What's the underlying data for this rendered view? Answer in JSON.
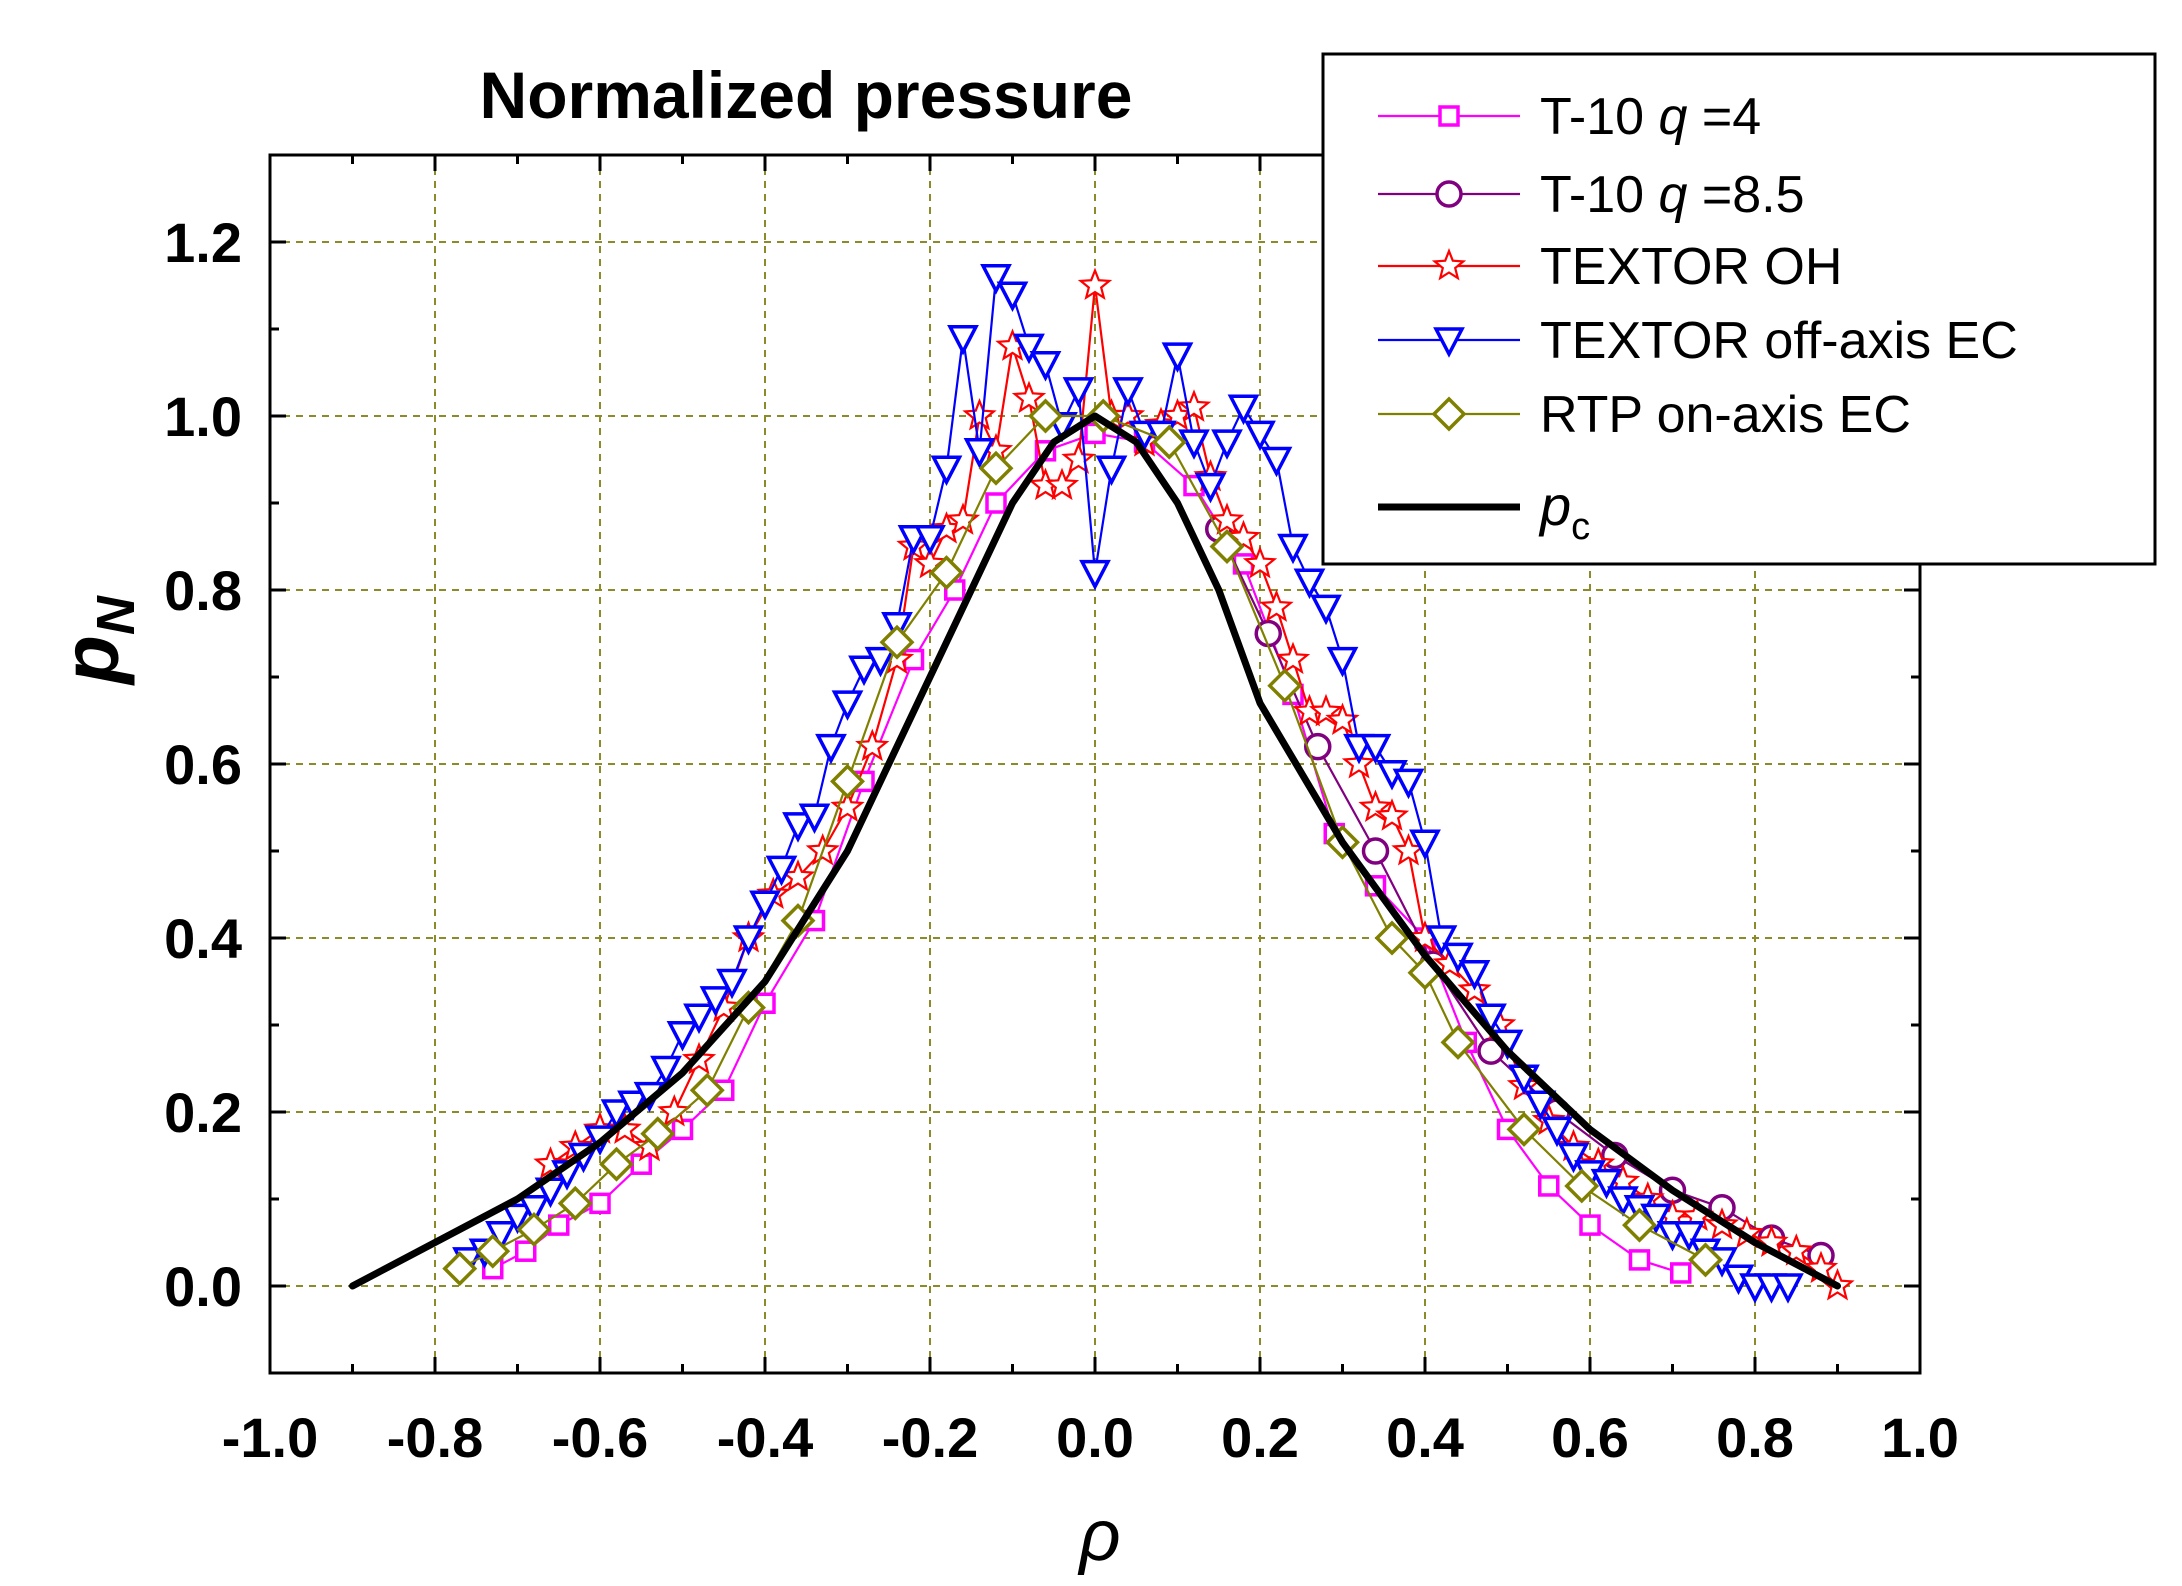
{
  "chart_data": {
    "type": "line",
    "title": "Normalized pressure",
    "xlabel": "ρ",
    "ylabel": "p",
    "ylabel_sub": "N",
    "xlim": [
      -1.0,
      1.0
    ],
    "ylim": [
      -0.1,
      1.3
    ],
    "xticks": [
      -1.0,
      -0.8,
      -0.6,
      -0.4,
      -0.2,
      0.0,
      0.2,
      0.4,
      0.6,
      0.8,
      1.0
    ],
    "yticks": [
      0.0,
      0.2,
      0.4,
      0.6,
      0.8,
      1.0,
      1.2
    ],
    "xtick_labels": [
      "-1.0",
      "-0.8",
      "-0.6",
      "-0.4",
      "-0.2",
      "0.0",
      "0.2",
      "0.4",
      "0.6",
      "0.8",
      "1.0"
    ],
    "ytick_labels": [
      "0.0",
      "0.2",
      "0.4",
      "0.6",
      "0.8",
      "1.0",
      "1.2"
    ],
    "grid": true,
    "legend_position": "top-right",
    "series": [
      {
        "name": "T-10 q =4",
        "label_parts": [
          "T-10 ",
          "q",
          " =4"
        ],
        "color": "#ff00ff",
        "marker": "square",
        "x": [
          -0.73,
          -0.69,
          -0.65,
          -0.6,
          -0.55,
          -0.5,
          -0.45,
          -0.4,
          -0.34,
          -0.28,
          -0.22,
          -0.17,
          -0.12,
          -0.06,
          0.0,
          0.06,
          0.12,
          0.18,
          0.24,
          0.29,
          0.34,
          0.4,
          0.45,
          0.5,
          0.55,
          0.6,
          0.66,
          0.71
        ],
        "y": [
          0.02,
          0.04,
          0.07,
          0.095,
          0.14,
          0.18,
          0.225,
          0.325,
          0.42,
          0.58,
          0.72,
          0.8,
          0.9,
          0.96,
          0.98,
          0.97,
          0.92,
          0.83,
          0.68,
          0.52,
          0.46,
          0.4,
          0.28,
          0.18,
          0.115,
          0.07,
          0.03,
          0.015
        ]
      },
      {
        "name": "T-10 q =8.5",
        "label_parts": [
          "T-10 ",
          "q",
          " =8.5"
        ],
        "color": "#800080",
        "marker": "circle",
        "x": [
          0.15,
          0.21,
          0.27,
          0.34,
          0.41,
          0.48,
          0.56,
          0.63,
          0.7,
          0.76,
          0.82,
          0.88
        ],
        "y": [
          0.87,
          0.75,
          0.62,
          0.5,
          0.37,
          0.27,
          0.2,
          0.15,
          0.11,
          0.09,
          0.055,
          0.035
        ]
      },
      {
        "name": "TEXTOR OH",
        "label_parts": [
          "TEXTOR OH"
        ],
        "color": "#ff0000",
        "marker": "star",
        "x": [
          -0.66,
          -0.63,
          -0.6,
          -0.57,
          -0.54,
          -0.51,
          -0.48,
          -0.45,
          -0.42,
          -0.39,
          -0.36,
          -0.33,
          -0.3,
          -0.27,
          -0.24,
          -0.22,
          -0.2,
          -0.18,
          -0.16,
          -0.14,
          -0.12,
          -0.1,
          -0.08,
          -0.06,
          -0.04,
          -0.02,
          0.0,
          0.02,
          0.04,
          0.06,
          0.08,
          0.1,
          0.12,
          0.14,
          0.16,
          0.18,
          0.2,
          0.22,
          0.24,
          0.26,
          0.28,
          0.3,
          0.32,
          0.34,
          0.36,
          0.38,
          0.4,
          0.43,
          0.46,
          0.49,
          0.52,
          0.55,
          0.58,
          0.61,
          0.64,
          0.67,
          0.7,
          0.73,
          0.76,
          0.79,
          0.82,
          0.85,
          0.88,
          0.9
        ],
        "y": [
          0.14,
          0.16,
          0.18,
          0.18,
          0.16,
          0.2,
          0.26,
          0.32,
          0.4,
          0.45,
          0.47,
          0.5,
          0.55,
          0.62,
          0.72,
          0.85,
          0.83,
          0.87,
          0.88,
          1.0,
          0.96,
          1.08,
          1.02,
          0.92,
          0.92,
          0.95,
          1.15,
          1.0,
          1.0,
          0.97,
          0.99,
          1.0,
          1.01,
          0.93,
          0.88,
          0.86,
          0.83,
          0.78,
          0.72,
          0.66,
          0.66,
          0.65,
          0.6,
          0.55,
          0.54,
          0.5,
          0.4,
          0.37,
          0.34,
          0.3,
          0.23,
          0.19,
          0.16,
          0.14,
          0.12,
          0.1,
          0.08,
          0.08,
          0.07,
          0.06,
          0.05,
          0.04,
          0.02,
          0.0
        ]
      },
      {
        "name": "TEXTOR off-axis EC",
        "label_parts": [
          "TEXTOR off-axis EC"
        ],
        "color": "#0000ff",
        "marker": "triangle-down",
        "x": [
          -0.76,
          -0.74,
          -0.72,
          -0.7,
          -0.68,
          -0.66,
          -0.64,
          -0.62,
          -0.6,
          -0.58,
          -0.56,
          -0.54,
          -0.52,
          -0.5,
          -0.48,
          -0.46,
          -0.44,
          -0.42,
          -0.4,
          -0.38,
          -0.36,
          -0.34,
          -0.32,
          -0.3,
          -0.28,
          -0.26,
          -0.24,
          -0.22,
          -0.2,
          -0.18,
          -0.16,
          -0.14,
          -0.12,
          -0.1,
          -0.08,
          -0.06,
          -0.04,
          -0.02,
          0.0,
          0.02,
          0.04,
          0.06,
          0.08,
          0.1,
          0.12,
          0.14,
          0.16,
          0.18,
          0.2,
          0.22,
          0.24,
          0.26,
          0.28,
          0.3,
          0.32,
          0.34,
          0.36,
          0.38,
          0.4,
          0.42,
          0.44,
          0.46,
          0.48,
          0.5,
          0.52,
          0.54,
          0.56,
          0.58,
          0.6,
          0.62,
          0.64,
          0.66,
          0.68,
          0.7,
          0.72,
          0.74,
          0.76,
          0.78,
          0.8,
          0.82,
          0.84
        ],
        "y": [
          0.03,
          0.04,
          0.06,
          0.08,
          0.09,
          0.11,
          0.13,
          0.15,
          0.17,
          0.2,
          0.21,
          0.22,
          0.25,
          0.29,
          0.31,
          0.33,
          0.35,
          0.4,
          0.44,
          0.48,
          0.53,
          0.54,
          0.62,
          0.67,
          0.71,
          0.72,
          0.76,
          0.86,
          0.86,
          0.94,
          1.09,
          0.96,
          1.16,
          1.14,
          1.08,
          1.06,
          0.99,
          1.03,
          0.82,
          0.94,
          1.03,
          0.98,
          0.98,
          1.07,
          0.97,
          0.92,
          0.97,
          1.01,
          0.98,
          0.95,
          0.85,
          0.81,
          0.78,
          0.72,
          0.62,
          0.62,
          0.59,
          0.58,
          0.51,
          0.4,
          0.38,
          0.36,
          0.31,
          0.28,
          0.24,
          0.21,
          0.18,
          0.15,
          0.13,
          0.12,
          0.1,
          0.09,
          0.08,
          0.06,
          0.06,
          0.04,
          0.03,
          0.01,
          0.0,
          0.0,
          0.0
        ]
      },
      {
        "name": "RTP on-axis EC",
        "label_parts": [
          "RTP on-axis EC"
        ],
        "color": "#808000",
        "marker": "diamond",
        "x": [
          -0.77,
          -0.73,
          -0.68,
          -0.63,
          -0.58,
          -0.53,
          -0.47,
          -0.42,
          -0.36,
          -0.3,
          -0.24,
          -0.18,
          -0.12,
          -0.06,
          0.01,
          0.09,
          0.16,
          0.23,
          0.3,
          0.36,
          0.4,
          0.44,
          0.52,
          0.59,
          0.66,
          0.74
        ],
        "y": [
          0.02,
          0.04,
          0.065,
          0.095,
          0.14,
          0.175,
          0.225,
          0.32,
          0.42,
          0.58,
          0.74,
          0.82,
          0.94,
          1.0,
          1.0,
          0.97,
          0.85,
          0.69,
          0.51,
          0.4,
          0.36,
          0.28,
          0.18,
          0.115,
          0.07,
          0.03
        ]
      },
      {
        "name": "pc",
        "label_parts": [
          "p",
          "c"
        ],
        "color": "#000000",
        "marker": "none",
        "x": [
          -0.9,
          -0.8,
          -0.7,
          -0.6,
          -0.5,
          -0.4,
          -0.3,
          -0.2,
          -0.15,
          -0.1,
          -0.05,
          0.0,
          0.05,
          0.1,
          0.15,
          0.2,
          0.3,
          0.4,
          0.5,
          0.6,
          0.7,
          0.8,
          0.9
        ],
        "y": [
          0.0,
          0.05,
          0.1,
          0.165,
          0.245,
          0.35,
          0.5,
          0.7,
          0.8,
          0.9,
          0.97,
          1.0,
          0.97,
          0.9,
          0.8,
          0.67,
          0.51,
          0.38,
          0.27,
          0.18,
          0.11,
          0.05,
          0.0
        ]
      }
    ]
  }
}
